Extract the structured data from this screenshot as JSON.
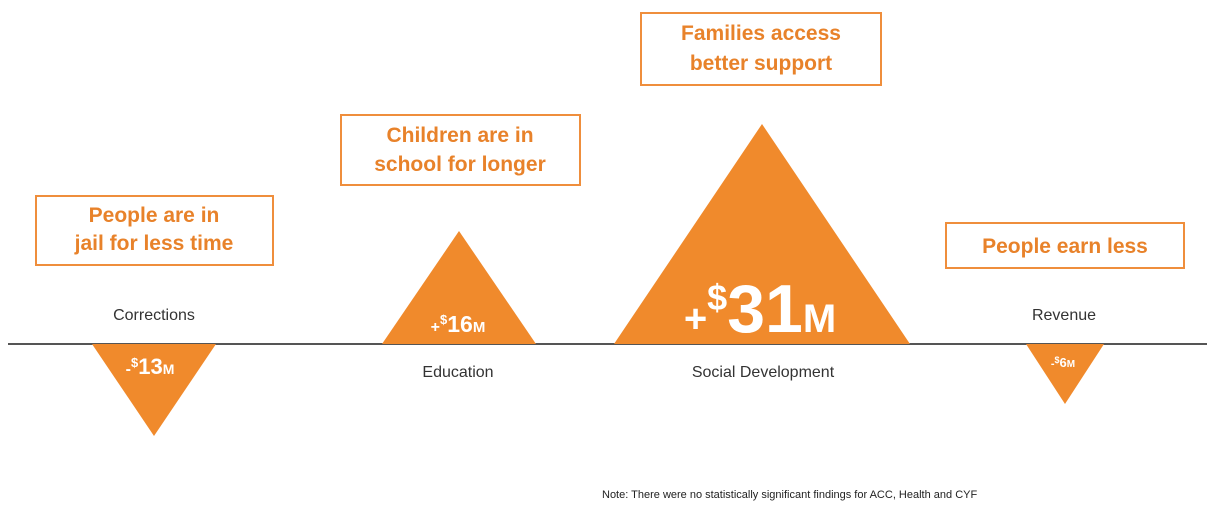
{
  "accent_color": "#f08a2c",
  "box_border_color": "#ef8e3c",
  "items": [
    {
      "area": "Corrections",
      "outcome_line1": "People are in",
      "outcome_line2": "jail for less time",
      "sign": "-",
      "currency": "$",
      "amount": "13",
      "unit": "M",
      "value": -13
    },
    {
      "area": "Education",
      "outcome_line1": "Children are in",
      "outcome_line2": "school for longer",
      "sign": "+",
      "currency": "$",
      "amount": "16",
      "unit": "M",
      "value": 16
    },
    {
      "area": "Social Development",
      "outcome_line1": "Families access",
      "outcome_line2": "better support",
      "sign": "+",
      "currency": "$",
      "amount": "31",
      "unit": "M",
      "value": 31
    },
    {
      "area": "Revenue",
      "outcome_line1": "People earn less",
      "outcome_line2": "",
      "sign": "-",
      "currency": "$",
      "amount": "6",
      "unit": "M",
      "value": -6
    }
  ],
  "note": "Note: There were no statistically significant findings for ACC, Health and CYF"
}
